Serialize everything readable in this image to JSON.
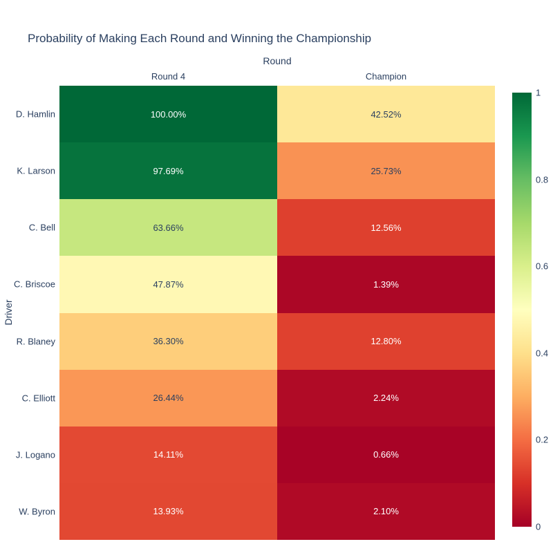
{
  "colors": {
    "background": "#ffffff",
    "axis_text": "#2a3f5f",
    "cell_text_dark": "#2a3f5f",
    "cell_text_light": "#ffffff"
  },
  "chart_data": {
    "type": "heatmap",
    "title": "Probability of Making Each Round and Winning the Championship",
    "xlabel": "Round",
    "ylabel": "Driver",
    "x": [
      "Round 4",
      "Champion"
    ],
    "y": [
      "D. Hamlin",
      "K. Larson",
      "C. Bell",
      "C. Briscoe",
      "R. Blaney",
      "C. Elliott",
      "J. Logano",
      "W. Byron"
    ],
    "values": [
      [
        1.0,
        0.4252
      ],
      [
        0.9769,
        0.2573
      ],
      [
        0.6366,
        0.1256
      ],
      [
        0.4787,
        0.0139
      ],
      [
        0.363,
        0.128
      ],
      [
        0.2644,
        0.0224
      ],
      [
        0.1411,
        0.0066
      ],
      [
        0.1393,
        0.021
      ]
    ],
    "cell_labels": [
      [
        "100.00%",
        "42.52%"
      ],
      [
        "97.69%",
        "25.73%"
      ],
      [
        "63.66%",
        "12.56%"
      ],
      [
        "47.87%",
        "1.39%"
      ],
      [
        "36.30%",
        "12.80%"
      ],
      [
        "26.44%",
        "2.24%"
      ],
      [
        "14.11%",
        "0.66%"
      ],
      [
        "13.93%",
        "2.10%"
      ]
    ],
    "zmin": 0,
    "zmax": 1,
    "colorscale": {
      "name": "RdYlGn",
      "stops": [
        "#a50026",
        "#d73027",
        "#f46d43",
        "#fdae61",
        "#fee08b",
        "#ffffbf",
        "#d9ef8b",
        "#a6d96a",
        "#66bd63",
        "#1a9850",
        "#006837"
      ]
    },
    "colorbar": {
      "ticks": [
        {
          "label": "1",
          "value": 1.0
        },
        {
          "label": "0.8",
          "value": 0.8
        },
        {
          "label": "0.6",
          "value": 0.6
        },
        {
          "label": "0.4",
          "value": 0.4
        },
        {
          "label": "0.2",
          "value": 0.2
        },
        {
          "label": "0",
          "value": 0.0
        }
      ]
    },
    "legend_position": "right-colorbar",
    "grid": false
  }
}
